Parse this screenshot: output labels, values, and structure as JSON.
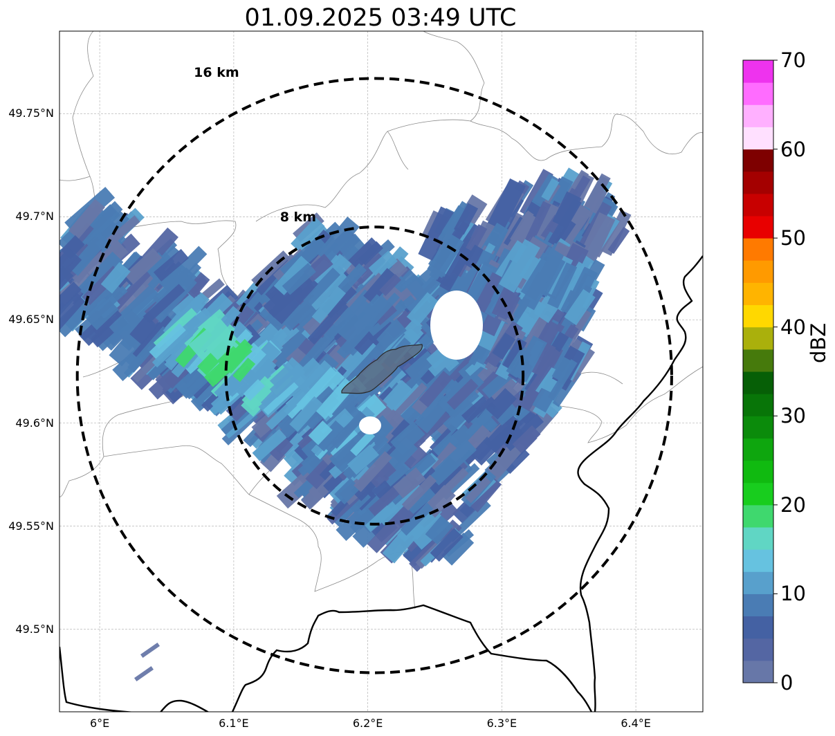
{
  "title": "01.09.2025 03:49 UTC",
  "map": {
    "lon_range": [
      5.97,
      6.45
    ],
    "lat_range": [
      49.46,
      49.79
    ],
    "center": {
      "lon": 6.205,
      "lat": 49.623
    },
    "grid": true,
    "lat_ticks": [
      {
        "value": 49.75,
        "label": "49.75°N"
      },
      {
        "value": 49.7,
        "label": "49.7°N"
      },
      {
        "value": 49.65,
        "label": "49.65°N"
      },
      {
        "value": 49.6,
        "label": "49.6°N"
      },
      {
        "value": 49.55,
        "label": "49.55°N"
      },
      {
        "value": 49.5,
        "label": "49.5°N"
      }
    ],
    "lon_ticks": [
      {
        "value": 6.0,
        "label": "6°E"
      },
      {
        "value": 6.1,
        "label": "6.1°E"
      },
      {
        "value": 6.2,
        "label": "6.2°E"
      },
      {
        "value": 6.3,
        "label": "6.3°E"
      },
      {
        "value": 6.4,
        "label": "6.4°E"
      }
    ],
    "range_rings": [
      {
        "label": "8 km",
        "radius_km": 8
      },
      {
        "label": "16 km",
        "radius_km": 16
      }
    ]
  },
  "colorbar": {
    "label": "dBZ",
    "ticks": [
      "0",
      "10",
      "20",
      "30",
      "40",
      "50",
      "60",
      "70"
    ],
    "colors": [
      "#6777a8",
      "#5466a3",
      "#4461a3",
      "#4a7cb4",
      "#58a0cc",
      "#66c2e0",
      "#60d6c4",
      "#3fd86e",
      "#18cd1e",
      "#10ba10",
      "#0ea60e",
      "#0b8b0b",
      "#087508",
      "#065f06",
      "#467a0c",
      "#aab00c",
      "#ffd800",
      "#ffb400",
      "#ff9a00",
      "#ff7a00",
      "#e80000",
      "#c80000",
      "#a40000",
      "#7e0000",
      "#ffe0ff",
      "#ffb0ff",
      "#ff6cff",
      "#ee33ee"
    ]
  }
}
